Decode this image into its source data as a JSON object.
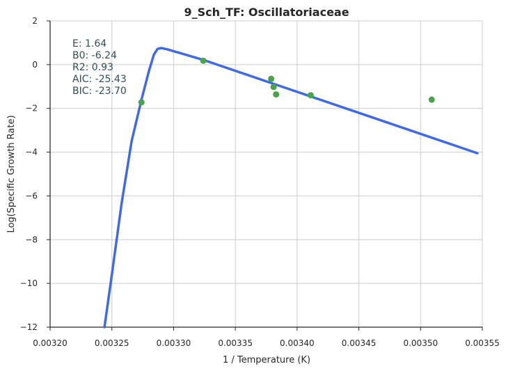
{
  "chart_data": {
    "type": "scatter",
    "title": "9_Sch_TF: Oscillatoriaceae",
    "xlabel": "1 / Temperature (K)",
    "ylabel": "Log(Specific Growth Rate)",
    "xlim": [
      0.0032,
      0.00355
    ],
    "ylim": [
      -12,
      2
    ],
    "x_ticks": [
      "0.00320",
      "0.00325",
      "0.00330",
      "0.00335",
      "0.00340",
      "0.00345",
      "0.00350",
      "0.00355"
    ],
    "y_ticks": [
      "2",
      "0",
      "−2",
      "−4",
      "−6",
      "−8",
      "−10",
      "−12"
    ],
    "grid": true,
    "colors": {
      "points": "#4aa34a",
      "fit": "#4169e1",
      "grid": "#cccccc",
      "axis": "#262626",
      "stats": "#2f4f4f"
    },
    "points": [
      {
        "x": 0.003274,
        "y": -1.72
      },
      {
        "x": 0.003324,
        "y": 0.18
      },
      {
        "x": 0.003379,
        "y": -0.65
      },
      {
        "x": 0.003381,
        "y": -1.02
      },
      {
        "x": 0.003383,
        "y": -1.36
      },
      {
        "x": 0.003411,
        "y": -1.4
      },
      {
        "x": 0.003509,
        "y": -1.6
      }
    ],
    "fit_curve": [
      {
        "x": 0.003244,
        "y": -12.0
      },
      {
        "x": 0.00325,
        "y": -9.6
      },
      {
        "x": 0.003258,
        "y": -6.3
      },
      {
        "x": 0.003266,
        "y": -3.5
      },
      {
        "x": 0.003274,
        "y": -1.6
      },
      {
        "x": 0.00328,
        "y": -0.3
      },
      {
        "x": 0.003284,
        "y": 0.45
      },
      {
        "x": 0.003287,
        "y": 0.72
      },
      {
        "x": 0.00329,
        "y": 0.76
      },
      {
        "x": 0.003295,
        "y": 0.7
      },
      {
        "x": 0.003325,
        "y": 0.2
      },
      {
        "x": 0.003546,
        "y": -4.05
      }
    ],
    "stats": [
      {
        "label": "E:  1.64"
      },
      {
        "label": "B0:  -6.24"
      },
      {
        "label": "R2:  0.93"
      },
      {
        "label": "AIC: -25.43"
      },
      {
        "label": "BIC: -23.70"
      }
    ]
  }
}
